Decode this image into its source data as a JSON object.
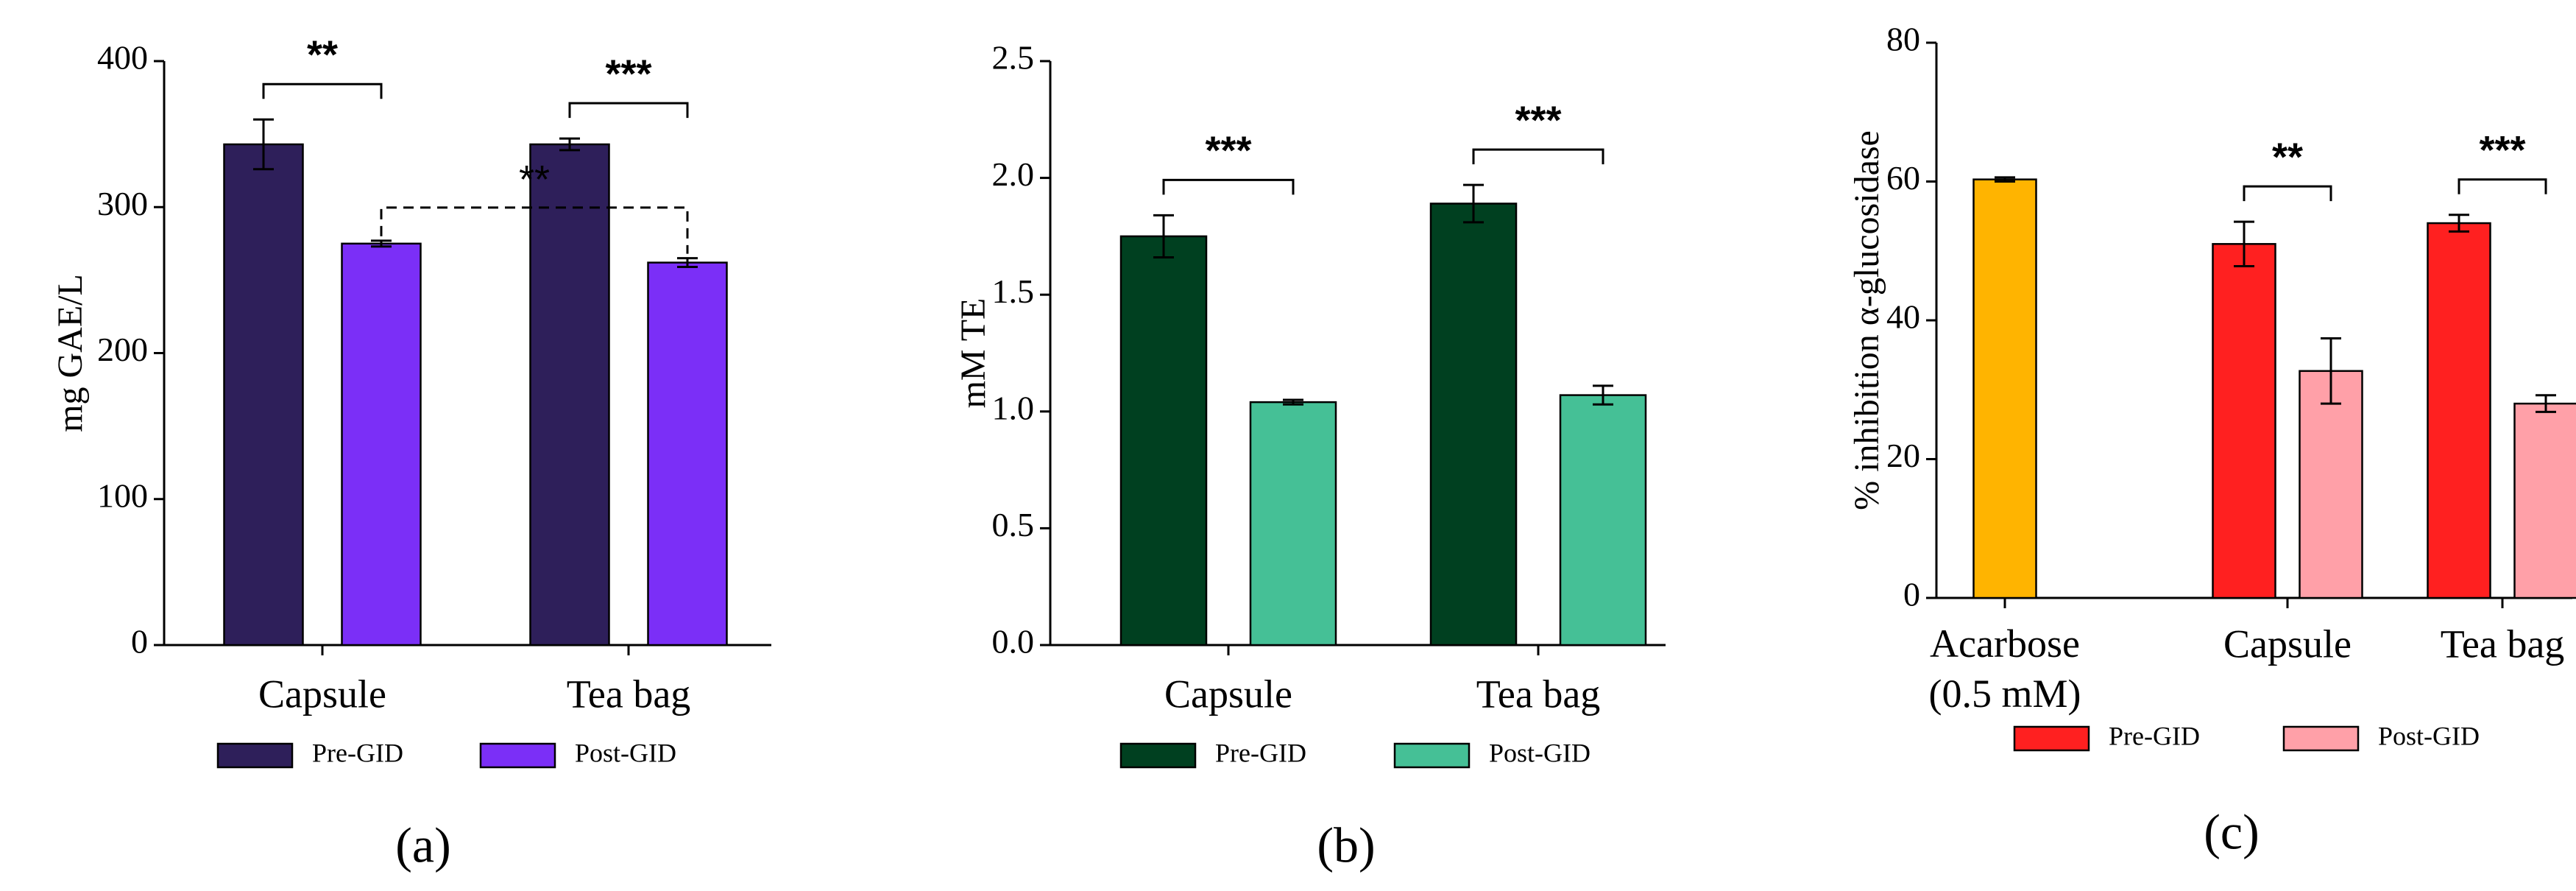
{
  "chart_data": [
    {
      "type": "bar",
      "panel_label": "(a)",
      "y_label": "mg GAE/L",
      "categories": [
        "Capsule",
        "Tea bag"
      ],
      "series": [
        {
          "name": "Pre-GID",
          "color": "#2e1f5a",
          "values": [
            343,
            343
          ],
          "errors": [
            17,
            4
          ]
        },
        {
          "name": "Post-GID",
          "color": "#7b2ff7",
          "values": [
            275,
            262
          ],
          "errors": [
            2,
            3
          ]
        }
      ],
      "ylim": [
        0,
        400
      ],
      "yticks": [
        0,
        100,
        200,
        300,
        400
      ],
      "annotations": [
        {
          "text": "**",
          "category": "Capsule"
        },
        {
          "text": "***",
          "category": "Tea bag"
        },
        {
          "text": "**",
          "series": "Post-GID",
          "dashed": true
        }
      ]
    },
    {
      "type": "bar",
      "panel_label": "(b)",
      "y_label": "mM TE",
      "categories": [
        "Capsule",
        "Tea bag"
      ],
      "series": [
        {
          "name": "Pre-GID",
          "color": "#004020",
          "values": [
            1.75,
            1.89
          ],
          "errors": [
            0.09,
            0.08
          ]
        },
        {
          "name": "Post-GID",
          "color": "#45c096",
          "values": [
            1.04,
            1.07
          ],
          "errors": [
            0.01,
            0.04
          ]
        }
      ],
      "ylim": [
        0,
        2.5
      ],
      "yticks": [
        {
          "value": 0,
          "label": "0.0"
        },
        0.5,
        {
          "value": 1,
          "label": "1.0"
        },
        1.5,
        {
          "value": 2,
          "label": "2.0"
        },
        2.5
      ],
      "annotations": [
        {
          "text": "***",
          "category": "Capsule"
        },
        {
          "text": "***",
          "category": "Tea bag"
        }
      ]
    },
    {
      "type": "bar",
      "panel_label": "(c)",
      "y_label": "% inhibition α-glucosidase",
      "categories": [
        "Acarbose\n(0.5 mM)",
        "Capsule",
        "Tea bag"
      ],
      "series": [
        {
          "name": "Pre-GID",
          "color": "#ff2020",
          "point_colors": [
            "#ffb400",
            "#ff2020",
            "#ff2020"
          ],
          "values": [
            60.3,
            51,
            54
          ],
          "errors": [
            0.3,
            3.2,
            1.2
          ]
        },
        {
          "name": "Post-GID",
          "color": "#ffa0a8",
          "values": [
            null,
            32.7,
            28
          ],
          "errors": [
            null,
            4.7,
            1.2
          ]
        }
      ],
      "ylim": [
        0,
        80
      ],
      "yticks": [
        0,
        20,
        40,
        60,
        80
      ],
      "annotations": [
        {
          "text": "**",
          "category": "Capsule"
        },
        {
          "text": "***",
          "category": "Tea bag"
        }
      ]
    }
  ]
}
